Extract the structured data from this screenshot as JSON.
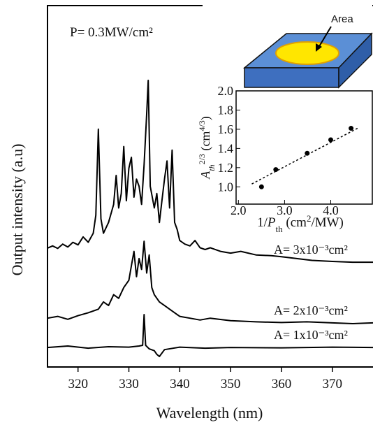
{
  "chart_data": [
    {
      "type": "line",
      "xlabel": "Wavelength (nm)",
      "ylabel": "Output intensity (a.u)",
      "annotation": "P= 0.3MW/cm²",
      "xlim": [
        314,
        378
      ],
      "xticks": [
        320,
        330,
        340,
        350,
        360,
        370
      ],
      "ylim": [
        0,
        100
      ],
      "series": [
        {
          "name": "A= 3x10⁻³cm²",
          "color": "#000000",
          "x": [
            314,
            315,
            316,
            317,
            318,
            319,
            320,
            321,
            322,
            323,
            323.5,
            324,
            324.5,
            325,
            326,
            327,
            327.5,
            328,
            328.5,
            329,
            329.5,
            330,
            330.5,
            331,
            331.5,
            332,
            332.5,
            333,
            333.5,
            333.8,
            334.2,
            335,
            335.5,
            336,
            336.5,
            337,
            337.5,
            338,
            338.5,
            339,
            339.5,
            340,
            341,
            342,
            343,
            344,
            345,
            346,
            348,
            350,
            352,
            355,
            358,
            360,
            363,
            366,
            370,
            374,
            378
          ],
          "values": [
            32.9,
            33.5,
            32.8,
            34,
            33.2,
            34.5,
            33.8,
            36,
            34.5,
            37,
            42,
            65.8,
            41,
            37,
            40,
            45,
            53,
            44,
            48,
            61,
            46,
            55,
            58,
            47,
            52,
            50,
            45,
            56,
            70,
            79.3,
            50,
            44,
            48,
            40,
            46,
            52,
            57,
            44,
            60,
            40,
            38,
            35,
            34,
            33.5,
            35,
            33,
            32.5,
            33,
            32,
            31.5,
            32,
            31,
            30.8,
            30.5,
            30,
            29.5,
            29.2,
            29,
            29
          ]
        },
        {
          "name": "A= 2x10⁻³cm²",
          "color": "#000000",
          "x": [
            314,
            316,
            318,
            320,
            322,
            324,
            325,
            326,
            327,
            328,
            329,
            330,
            330.5,
            331,
            331.5,
            332,
            332.5,
            333,
            333.5,
            334,
            334.5,
            335,
            336,
            337,
            338,
            339,
            340,
            342,
            344,
            346,
            350,
            355,
            360,
            365,
            370,
            374,
            378
          ],
          "values": [
            13.5,
            14,
            13.2,
            14.2,
            15,
            16,
            18,
            17,
            20,
            19,
            22,
            24,
            28,
            32,
            25,
            30,
            27,
            34.8,
            26,
            31,
            22,
            20,
            18,
            17,
            16,
            15,
            14,
            13.5,
            13,
            13.5,
            12.8,
            12.5,
            12.3,
            12.5,
            12.2,
            12,
            12.2
          ]
        },
        {
          "name": "A= 1x10⁻³cm²",
          "color": "#000000",
          "x": [
            314,
            318,
            322,
            326,
            330,
            332,
            332.7,
            333,
            333.3,
            334,
            335,
            335.5,
            336,
            337,
            340,
            345,
            350,
            360,
            370,
            378
          ],
          "values": [
            5.4,
            5.8,
            5.2,
            5.6,
            5.5,
            5.8,
            6,
            14.5,
            6,
            5,
            4.5,
            3.5,
            2.9,
            4.8,
            5.5,
            5.2,
            5.4,
            5.3,
            5.5,
            5.4
          ]
        }
      ]
    },
    {
      "type": "scatter",
      "xlabel": [
        "1/",
        "P",
        "th",
        " (cm",
        "2",
        "/MW)"
      ],
      "ylabel": [
        "A",
        "th",
        "2/3",
        " (cm",
        "4/3",
        ")"
      ],
      "annotation": "Area",
      "xlim": [
        1.95,
        4.9
      ],
      "xticks": [
        {
          "value": 2,
          "label": "2.0"
        },
        {
          "value": 3,
          "label": "3.0"
        },
        {
          "value": 4,
          "label": "4.0"
        }
      ],
      "ylim": [
        0.82,
        2.0
      ],
      "yticks": [
        {
          "value": 1,
          "label": "1.0"
        },
        1.2,
        1.4,
        1.6,
        1.8,
        {
          "value": 2,
          "label": "2.0"
        }
      ],
      "series": [
        {
          "color": "#000000",
          "marker": "circle",
          "x": [
            2.5,
            2.81,
            3.49,
            4.0,
            4.44
          ],
          "values": [
            1.0,
            1.18,
            1.35,
            1.49,
            1.61
          ]
        },
        {
          "color": "#000000",
          "style": "dashed",
          "x": [
            2.29,
            4.62
          ],
          "values": [
            1.03,
            1.62
          ]
        }
      ]
    }
  ]
}
